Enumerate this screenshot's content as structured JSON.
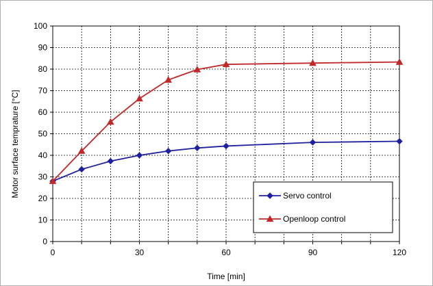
{
  "chart_data": {
    "type": "line",
    "title": "",
    "xlabel": "Time [min]",
    "ylabel": "Motor surface temprature [°C]",
    "xlim": [
      0,
      120
    ],
    "ylim": [
      0,
      100
    ],
    "xticks": [
      0,
      30,
      60,
      90,
      120
    ],
    "yticks": [
      0,
      10,
      20,
      30,
      40,
      50,
      60,
      70,
      80,
      90,
      100
    ],
    "x_minor_step": 10,
    "grid": true,
    "legend_position": "bottom-right",
    "series": [
      {
        "name": "Servo control",
        "color": "#1f1fa0",
        "marker": "diamond",
        "x": [
          0,
          10,
          20,
          30,
          40,
          50,
          60,
          90,
          120
        ],
        "y": [
          28,
          33.5,
          37.3,
          40,
          42,
          43.4,
          44.3,
          46,
          46.5
        ]
      },
      {
        "name": "Openloop control",
        "color": "#c0282a",
        "marker": "triangle",
        "x": [
          0,
          10,
          20,
          30,
          40,
          50,
          60,
          90,
          120
        ],
        "y": [
          28,
          42,
          55.5,
          66.3,
          75,
          79.8,
          82.2,
          82.8,
          83.3
        ]
      }
    ]
  }
}
